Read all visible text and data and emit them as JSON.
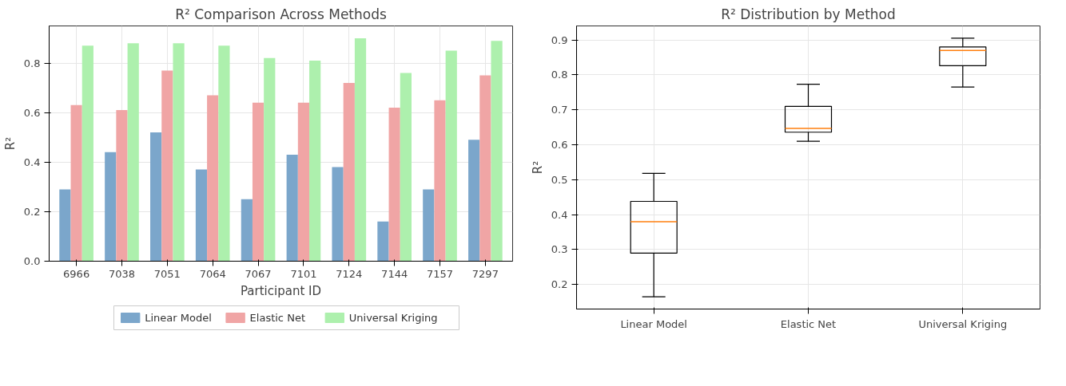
{
  "chart_data": [
    {
      "type": "bar",
      "title": "R² Comparison Across Methods",
      "xlabel": "Participant ID",
      "ylabel": "R²",
      "categories": [
        "6966",
        "7038",
        "7051",
        "7064",
        "7067",
        "7101",
        "7124",
        "7144",
        "7157",
        "7297"
      ],
      "series": [
        {
          "name": "Linear Model",
          "color": "#7ba6cb",
          "values": [
            0.29,
            0.44,
            0.52,
            0.37,
            0.25,
            0.43,
            0.38,
            0.16,
            0.29,
            0.49
          ]
        },
        {
          "name": "Elastic Net",
          "color": "#f0a5a5",
          "values": [
            0.63,
            0.61,
            0.77,
            0.67,
            0.64,
            0.64,
            0.72,
            0.62,
            0.65,
            0.75
          ]
        },
        {
          "name": "Universal Kriging",
          "color": "#adf0ad",
          "values": [
            0.87,
            0.88,
            0.88,
            0.87,
            0.82,
            0.81,
            0.9,
            0.76,
            0.85,
            0.89
          ]
        }
      ],
      "ylim": [
        0,
        0.95
      ],
      "yticks": [
        {
          "value": 0,
          "label": "0.0"
        },
        0.2,
        0.4,
        0.6,
        0.8
      ],
      "grid": true,
      "legend": "bottom"
    },
    {
      "type": "box",
      "title": "R² Distribution by Method",
      "ylabel": "R²",
      "categories": [
        "Linear Model",
        "Elastic Net",
        "Universal Kriging"
      ],
      "boxes": [
        {
          "low": 0.165,
          "q1": 0.29,
          "median": 0.38,
          "q3": 0.438,
          "high": 0.518
        },
        {
          "low": 0.61,
          "q1": 0.636,
          "median": 0.647,
          "q3": 0.71,
          "high": 0.773
        },
        {
          "low": 0.765,
          "q1": 0.826,
          "median": 0.87,
          "q3": 0.88,
          "high": 0.905
        }
      ],
      "ylim": [
        0.13,
        0.94
      ],
      "yticks": [
        0.2,
        0.3,
        0.4,
        0.5,
        0.6,
        0.7,
        0.8,
        0.9
      ],
      "grid": true
    }
  ]
}
